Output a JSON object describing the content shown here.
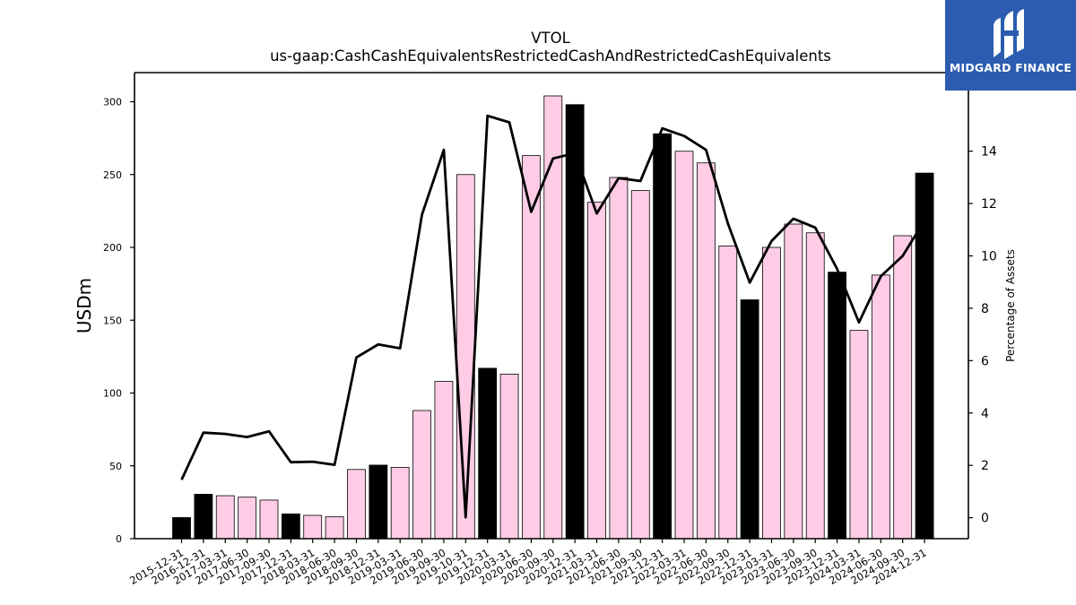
{
  "chart_data": {
    "type": "bar",
    "title": "VTOL",
    "subtitle": "us-gaap:CashCashEquivalentsRestrictedCashAndRestrictedCashEquivalents",
    "ylabel": "USDm",
    "y2label": "Percentage of Assets",
    "ylim": [
      0,
      320
    ],
    "y2lim": [
      -0.8,
      17.0
    ],
    "yticks": [
      0,
      50,
      100,
      150,
      200,
      250,
      300
    ],
    "y2ticks": [
      0,
      2,
      4,
      6,
      8,
      10,
      12,
      14
    ],
    "grid": false,
    "colors": {
      "annual_bar": "#000000",
      "quarter_bar": "#ffcce6",
      "bar_edge": "#000000",
      "line": "#000000"
    },
    "categories": [
      "2015-12-31",
      "2016-12-31",
      "2017-03-31",
      "2017-06-30",
      "2017-09-30",
      "2017-12-31",
      "2018-03-31",
      "2018-06-30",
      "2018-09-30",
      "2018-12-31",
      "2019-03-31",
      "2019-06-30",
      "2019-09-30",
      "2019-10-31",
      "2019-12-31",
      "2020-03-31",
      "2020-06-30",
      "2020-09-30",
      "2020-12-31",
      "2021-03-31",
      "2021-06-30",
      "2021-09-30",
      "2021-12-31",
      "2022-03-31",
      "2022-06-30",
      "2022-09-30",
      "2022-12-31",
      "2023-03-31",
      "2023-06-30",
      "2023-09-30",
      "2023-12-31",
      "2024-03-31",
      "2024-06-30",
      "2024-09-30",
      "2024-12-31"
    ],
    "series": [
      {
        "values": [
          14.5,
          30.5,
          29.5,
          28.5,
          26.5,
          17,
          16,
          15,
          47.5,
          50.5,
          49,
          88,
          108,
          250,
          117,
          113,
          263,
          304,
          298,
          231,
          248,
          239,
          278,
          266,
          258,
          201,
          164,
          200,
          216,
          210,
          183,
          143,
          181,
          208,
          251
        ],
        "annual": [
          true,
          true,
          false,
          false,
          false,
          true,
          false,
          false,
          false,
          true,
          false,
          false,
          false,
          false,
          true,
          false,
          false,
          false,
          true,
          false,
          false,
          false,
          true,
          false,
          false,
          false,
          true,
          false,
          false,
          false,
          true,
          false,
          false,
          false,
          true
        ]
      },
      {
        "values": [
          1.45,
          3.25,
          3.2,
          3.08,
          3.3,
          2.12,
          2.14,
          2.02,
          6.12,
          6.62,
          6.47,
          11.57,
          14.05,
          0.02,
          15.35,
          15.1,
          11.68,
          13.72,
          13.92,
          11.62,
          12.97,
          12.86,
          14.87,
          14.58,
          14.05,
          11.24,
          8.98,
          10.57,
          11.42,
          11.08,
          9.5,
          7.46,
          9.22,
          10.0,
          11.35
        ]
      }
    ]
  }
}
